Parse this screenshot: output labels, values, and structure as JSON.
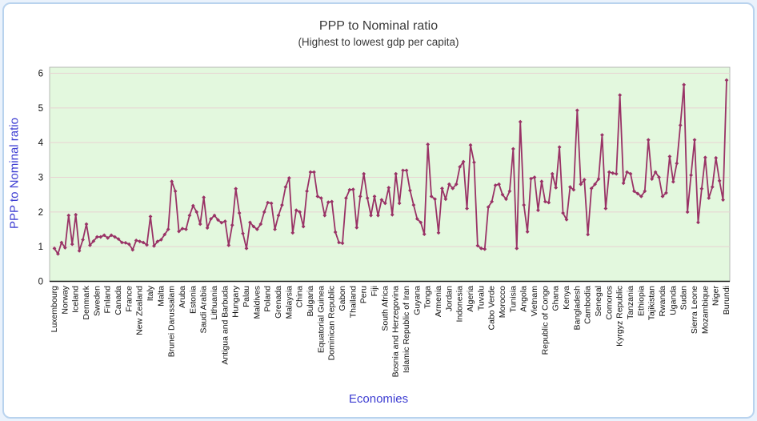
{
  "page": {
    "title": "PPP to Nominal ratio",
    "subtitle": "(Highest to lowest gdp per capita)"
  },
  "chart_data": {
    "type": "line",
    "title": "PPP to Nominal ratio",
    "subtitle": "(Highest to lowest gdp per capita)",
    "xlabel": "Economies",
    "ylabel": "PPP to Nominal ratio",
    "ylim": [
      0,
      6
    ],
    "yticks": [
      0,
      1,
      2,
      3,
      4,
      5,
      6
    ],
    "grid": true,
    "legend": false,
    "sorted_by": "Highest to lowest gdp per capita",
    "label_interval": 3,
    "categories": [
      "Luxembourg",
      "Norway",
      "Iceland",
      "Denmark",
      "Sweden",
      "Finland",
      "Canada",
      "France",
      "New Zealand",
      "Italy",
      "Malta",
      "Brunei Darussalam",
      "Aruba",
      "Estonia",
      "Saudi Arabia",
      "Lithuania",
      "Antigua and Barbuda",
      "Hungary",
      "Palau",
      "Maldives",
      "Poland",
      "Grenada",
      "Malaysia",
      "China",
      "Bulgaria",
      "Equatorial Guinea",
      "Dominican Republic",
      "Gabon",
      "Thailand",
      "Peru",
      "Fiji",
      "South Africa",
      "Bosnia and Herzegovina",
      "Islamic Republic of Iran",
      "Guyana",
      "Tonga",
      "Armenia",
      "Jordan",
      "Indonesia",
      "Algeria",
      "Tuvalu",
      "Cabo Verde",
      "Morocco",
      "Tunisia",
      "Angola",
      "Vietnam",
      "Republic of Congo",
      "Ghana",
      "Kenya",
      "Bangladesh",
      "Cambodia",
      "Senegal",
      "Comoros",
      "Kyrgyz Republic",
      "Tanzania",
      "Ethiopia",
      "Tajikistan",
      "Rwanda",
      "Uganda",
      "Sudan",
      "Sierra Leone",
      "Mozambique",
      "Niger",
      "Burundi"
    ],
    "labeled_values": [
      0.95,
      0.97,
      1.92,
      1.65,
      1.28,
      1.25,
      1.22,
      1.07,
      1.15,
      1.87,
      1.2,
      2.88,
      1.52,
      2.18,
      2.42,
      1.9,
      1.73,
      2.67,
      0.95,
      1.5,
      2.27,
      1.9,
      2.98,
      2.0,
      3.15,
      2.4,
      2.3,
      1.1,
      2.65,
      3.1,
      2.45,
      2.25,
      3.1,
      3.2,
      1.8,
      3.95,
      1.4,
      2.8,
      3.3,
      3.93,
      0.95,
      2.3,
      2.5,
      3.82,
      2.2,
      3.0,
      2.3,
      2.7,
      1.78,
      4.93,
      1.35,
      2.95,
      3.15,
      5.37,
      3.1,
      2.45,
      2.95,
      2.45,
      2.87,
      5.67,
      4.08,
      3.57,
      3.56,
      5.8
    ],
    "values": [
      0.95,
      0.79,
      1.12,
      0.97,
      1.9,
      1.07,
      1.92,
      0.88,
      1.2,
      1.65,
      1.04,
      1.16,
      1.28,
      1.28,
      1.33,
      1.25,
      1.33,
      1.28,
      1.22,
      1.12,
      1.11,
      1.07,
      0.91,
      1.18,
      1.15,
      1.12,
      1.05,
      1.87,
      1.02,
      1.15,
      1.2,
      1.35,
      1.5,
      2.88,
      2.6,
      1.44,
      1.52,
      1.5,
      1.9,
      2.18,
      2.0,
      1.65,
      2.42,
      1.54,
      1.8,
      1.9,
      1.77,
      1.69,
      1.73,
      1.04,
      1.62,
      2.67,
      1.97,
      1.38,
      0.95,
      1.7,
      1.58,
      1.5,
      1.65,
      2.0,
      2.27,
      2.25,
      1.5,
      1.9,
      2.2,
      2.72,
      2.98,
      1.4,
      2.05,
      2.0,
      1.58,
      2.6,
      3.15,
      3.15,
      2.45,
      2.4,
      1.9,
      2.28,
      2.3,
      1.42,
      1.12,
      1.1,
      2.4,
      2.64,
      2.65,
      1.55,
      2.45,
      3.1,
      2.4,
      1.9,
      2.45,
      1.9,
      2.35,
      2.25,
      2.7,
      1.92,
      3.1,
      2.25,
      3.2,
      3.2,
      2.62,
      2.2,
      1.8,
      1.7,
      1.36,
      3.95,
      2.45,
      2.37,
      1.4,
      2.68,
      2.37,
      2.8,
      2.68,
      2.8,
      3.3,
      3.45,
      2.1,
      3.93,
      3.43,
      1.03,
      0.95,
      0.93,
      2.14,
      2.3,
      2.77,
      2.8,
      2.5,
      2.37,
      2.6,
      3.82,
      0.95,
      4.6,
      2.2,
      1.43,
      2.96,
      3.0,
      2.05,
      2.88,
      2.3,
      2.27,
      3.1,
      2.7,
      3.87,
      1.97,
      1.78,
      2.72,
      2.64,
      4.93,
      2.8,
      2.93,
      1.35,
      2.68,
      2.8,
      2.95,
      4.22,
      2.1,
      3.15,
      3.12,
      3.1,
      5.37,
      2.83,
      3.15,
      3.1,
      2.6,
      2.53,
      2.45,
      2.6,
      4.08,
      2.95,
      3.15,
      3.0,
      2.45,
      2.55,
      3.6,
      2.87,
      3.4,
      4.5,
      5.67,
      2.0,
      3.06,
      4.08,
      1.7,
      2.67,
      3.57,
      2.4,
      2.72,
      3.56,
      2.9,
      2.35,
      5.8
    ],
    "colors": {
      "line": "#993366",
      "plot_bg": "#e3f8de",
      "grid": "#e8d2d2",
      "frame": "#a8a8a8",
      "axis_line": "#1a1a1a",
      "tick_text": "#111111",
      "axis_title": "#3d3dd2",
      "title_text": "#3b3b3b"
    }
  }
}
